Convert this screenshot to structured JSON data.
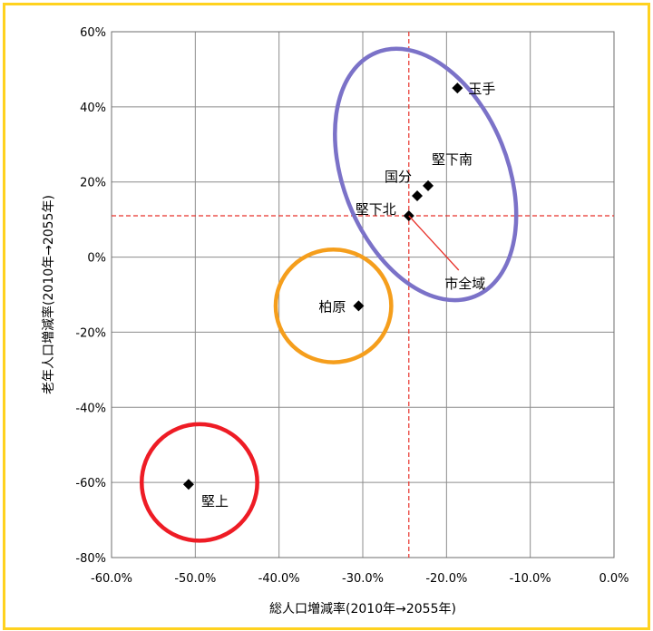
{
  "chart_data": {
    "type": "scatter",
    "title": "",
    "xlabel": "総人口増減率(2010年→2055年)",
    "ylabel": "老年人口増減率(2010年→2055年)",
    "xlim": [
      -0.6,
      0.0
    ],
    "ylim": [
      -0.8,
      0.6
    ],
    "x_ticks": [
      "-60.0%",
      "-50.0%",
      "-40.0%",
      "-30.0%",
      "-20.0%",
      "-10.0%",
      "0.0%"
    ],
    "y_ticks": [
      "60%",
      "40%",
      "20%",
      "0%",
      "-20%",
      "-40%",
      "-60%",
      "-80%"
    ],
    "grid": true,
    "points": [
      {
        "label": "玉手",
        "x": -0.187,
        "y": 0.45
      },
      {
        "label": "堅下南",
        "x": -0.222,
        "y": 0.19
      },
      {
        "label": "国分",
        "x": -0.235,
        "y": 0.163
      },
      {
        "label": "堅下北",
        "x": -0.245,
        "y": 0.11
      },
      {
        "label": "柏原",
        "x": -0.305,
        "y": -0.13
      },
      {
        "label": "堅上",
        "x": -0.508,
        "y": -0.605
      }
    ],
    "reference": {
      "label": "市全域",
      "x": -0.245,
      "y": 0.11
    },
    "groups": [
      {
        "cx": -0.225,
        "cy": 0.22,
        "rx": 0.098,
        "ry": 0.35,
        "color": "#7B72C8"
      },
      {
        "cx": -0.335,
        "cy": -0.13,
        "rx": 0.069,
        "ry": 0.15,
        "color": "#F59E1C"
      },
      {
        "cx": -0.495,
        "cy": -0.6,
        "rx": 0.069,
        "ry": 0.155,
        "color": "#EE1C25"
      }
    ],
    "colors": {
      "marker": "#000000",
      "reference_line": "#E8322B",
      "grid": "#8C8C8C",
      "frame": "#FFD21F"
    }
  }
}
